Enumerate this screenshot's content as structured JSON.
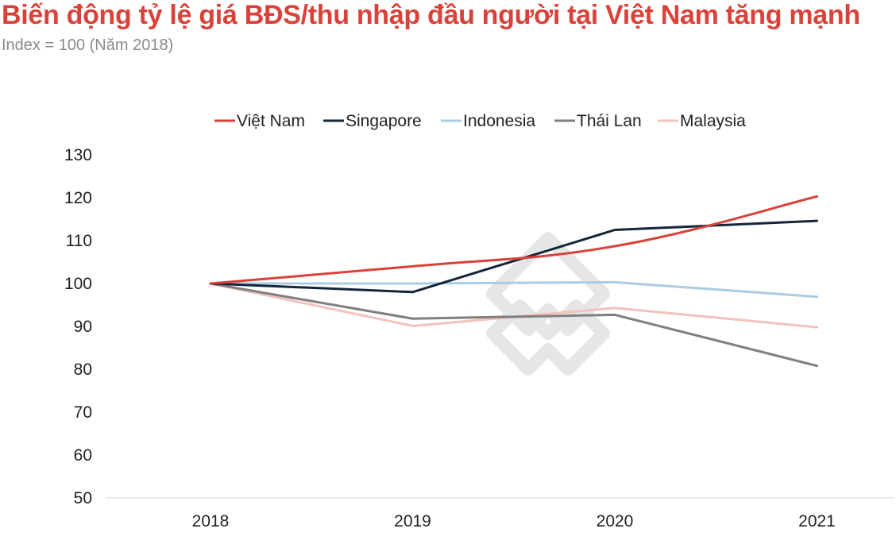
{
  "chart_data": {
    "type": "line",
    "title": "Biến động tỷ lệ giá BĐS/thu nhập đầu người tại Việt Nam tăng mạnh",
    "subtitle": "Index = 100 (Năm 2018)",
    "x": [
      "2018",
      "2019",
      "2020",
      "2021"
    ],
    "ylim": [
      50,
      130
    ],
    "yticks": [
      50,
      60,
      70,
      80,
      90,
      100,
      110,
      120,
      130
    ],
    "xlabel": "",
    "ylabel": "",
    "grid": false,
    "legend": "top-center",
    "series": [
      {
        "name": "Việt Nam",
        "color": "#d9423a",
        "values": [
          100,
          104,
          108.7,
          120.3
        ],
        "smooth": true
      },
      {
        "name": "Singapore",
        "color": "#13263a",
        "values": [
          100,
          98,
          112.5,
          114.6
        ],
        "smooth": false
      },
      {
        "name": "Indonesia",
        "color": "#a9cce3",
        "values": [
          100,
          100,
          100.3,
          96.9
        ],
        "smooth": false
      },
      {
        "name": "Thái Lan",
        "color": "#7f7f7f",
        "values": [
          100,
          91.8,
          92.7,
          80.8
        ],
        "smooth": false
      },
      {
        "name": "Malaysia",
        "color": "#f4c1bb",
        "values": [
          100,
          90.1,
          94.3,
          89.8
        ],
        "smooth": false
      }
    ]
  }
}
